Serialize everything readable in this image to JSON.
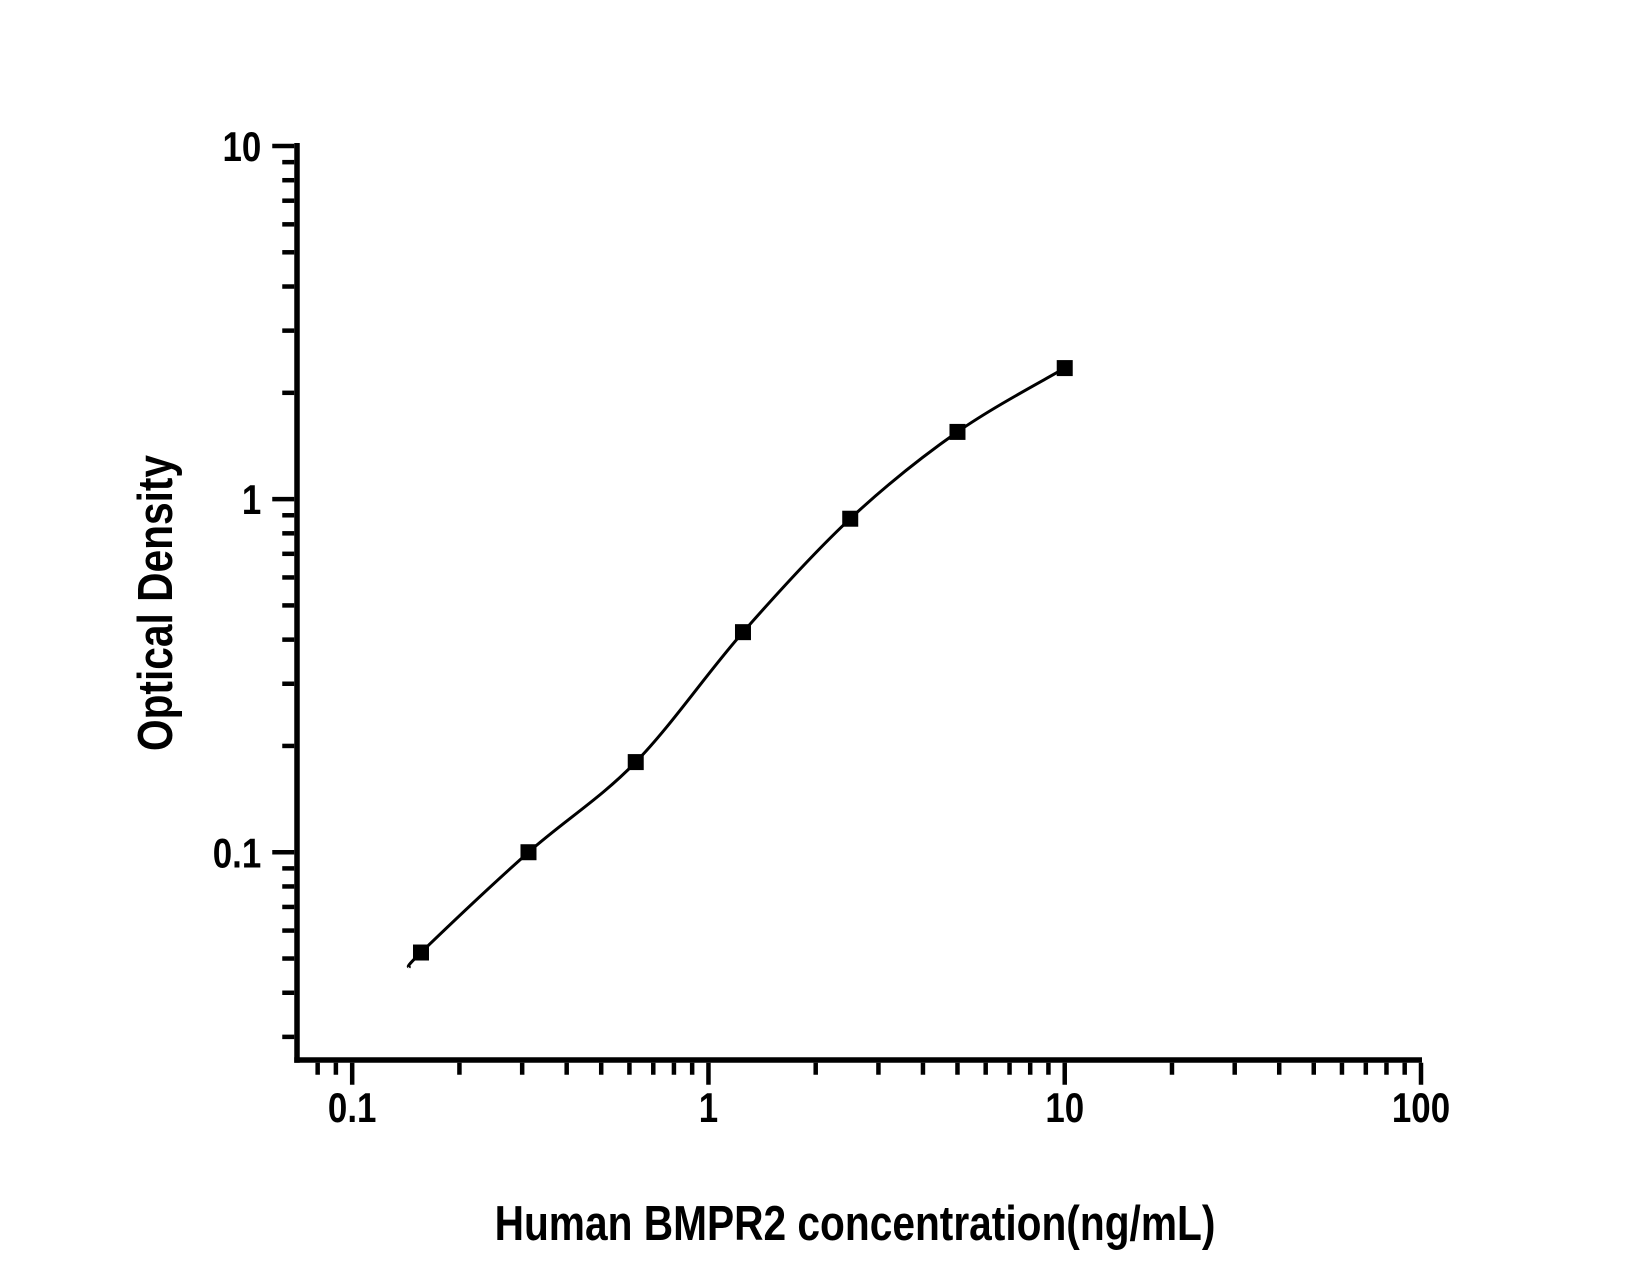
{
  "figure": {
    "background_color": "#ffffff",
    "foreground_color": "#000000"
  },
  "chart_data": {
    "type": "scatter",
    "subtype": "elisa-standard-curve",
    "title": "",
    "xlabel": "Human BMPR2 concentration(ng/mL)",
    "ylabel": "Optical Density",
    "x_scale": "log",
    "y_scale": "log",
    "xlim": [
      0.07,
      100
    ],
    "ylim": [
      0.0258,
      10
    ],
    "x_major_ticks": [
      0.1,
      1,
      10,
      100
    ],
    "x_major_tick_labels": [
      "0.1",
      "1",
      "10",
      "100"
    ],
    "y_major_ticks": [
      0.1,
      1,
      10
    ],
    "y_major_tick_labels": [
      "0.1",
      "1",
      "10"
    ],
    "minor_ticks": "log-decade-subdivisions",
    "grid": false,
    "legend": null,
    "series": [
      {
        "marker": "filled-square",
        "marker_color": "#000000",
        "line_color": "#000000",
        "x": [
          0.156,
          0.3125,
          0.625,
          1.25,
          2.5,
          5,
          10
        ],
        "y": [
          0.052,
          0.1,
          0.18,
          0.42,
          0.88,
          1.55,
          2.35
        ]
      }
    ]
  }
}
